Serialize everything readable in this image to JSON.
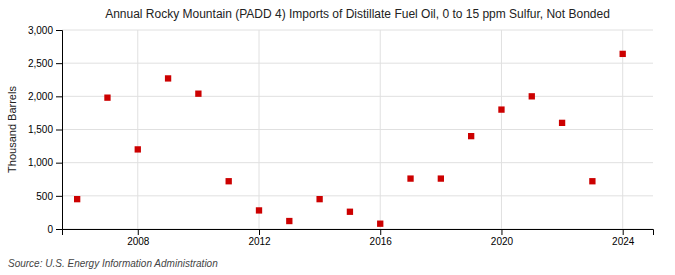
{
  "chart_data": {
    "type": "scatter",
    "title": "Annual Rocky Mountain (PADD 4) Imports of Distillate Fuel Oil, 0 to 15 ppm Sulfur, Not Bonded",
    "ylabel": "Thousand Barrels",
    "source": "Source: U.S. Energy Information Administration",
    "x": [
      2006,
      2007,
      2008,
      2009,
      2010,
      2011,
      2012,
      2013,
      2014,
      2015,
      2016,
      2017,
      2018,
      2019,
      2020,
      2021,
      2022,
      2023,
      2024
    ],
    "values": [
      450,
      1980,
      1200,
      2270,
      2040,
      720,
      280,
      120,
      450,
      260,
      80,
      760,
      760,
      1400,
      1800,
      2000,
      1600,
      720,
      2640
    ],
    "color": "#cc0000",
    "marker": "square",
    "grid": true,
    "xlim": [
      2005.5,
      2025.0
    ],
    "xticks": [
      2008,
      2012,
      2016,
      2020,
      2024
    ],
    "ylim": [
      0,
      3000
    ],
    "yticks": [
      0,
      500,
      {
        "value": 1000,
        "label": "1,000"
      },
      {
        "value": 1500,
        "label": "1,500"
      },
      {
        "value": 2000,
        "label": "2,000"
      },
      {
        "value": 2500,
        "label": "2,500"
      },
      {
        "value": 3000,
        "label": "3,000"
      }
    ]
  }
}
